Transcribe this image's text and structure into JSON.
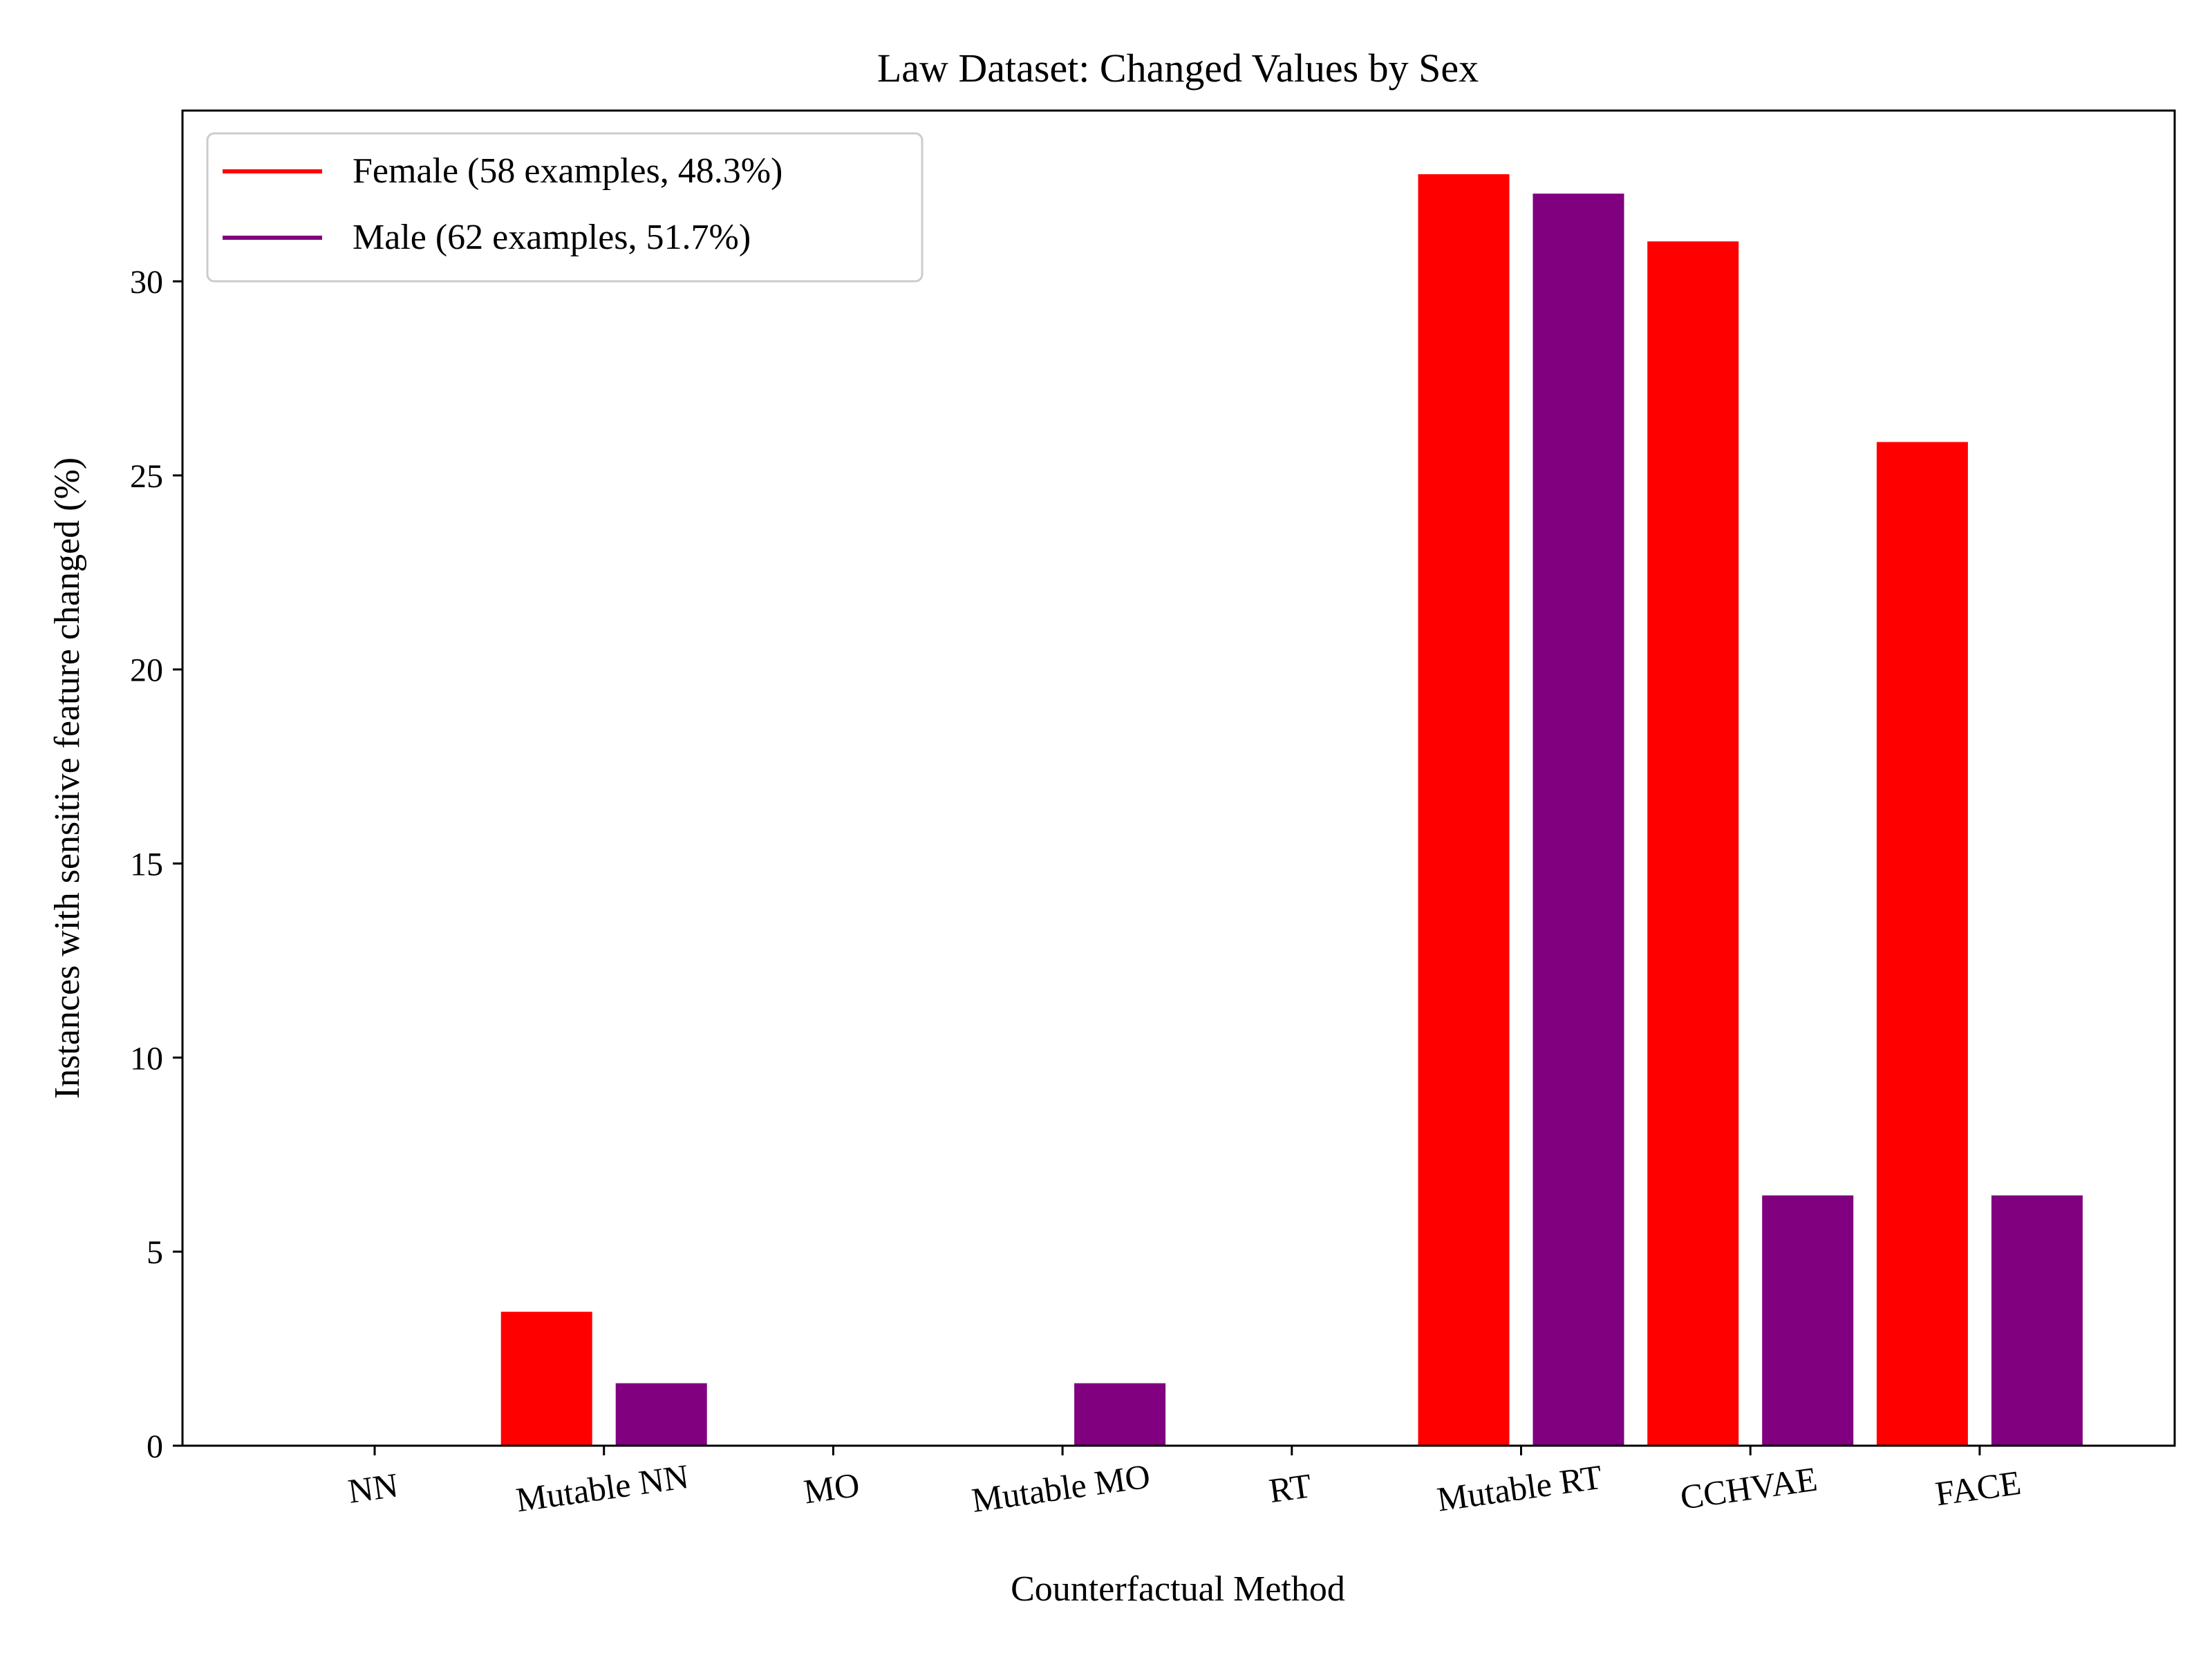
{
  "chart_data": {
    "type": "bar",
    "title": "Law Dataset: Changed Values by Sex",
    "xlabel": "Counterfactual Method",
    "ylabel": "Instances with sensitive feature changed (%)",
    "categories": [
      "NN",
      "Mutable NN",
      "MO",
      "Mutable MO",
      "RT",
      "Mutable RT",
      "CCHVAE",
      "FACE"
    ],
    "series": [
      {
        "name": "Female (58 examples, 48.3%)",
        "color": "#ff0000",
        "values": [
          0,
          3.45,
          0,
          0,
          0,
          32.76,
          31.03,
          25.86
        ]
      },
      {
        "name": "Male (62 examples, 51.7%)",
        "color": "#800080",
        "values": [
          0,
          1.61,
          0,
          1.61,
          0,
          32.26,
          6.45,
          6.45
        ]
      }
    ],
    "ylim": [
      0,
      34.4
    ],
    "yticks": [
      0,
      5,
      10,
      15,
      20,
      25,
      30
    ],
    "grid": false,
    "legend_position": "top-left"
  }
}
